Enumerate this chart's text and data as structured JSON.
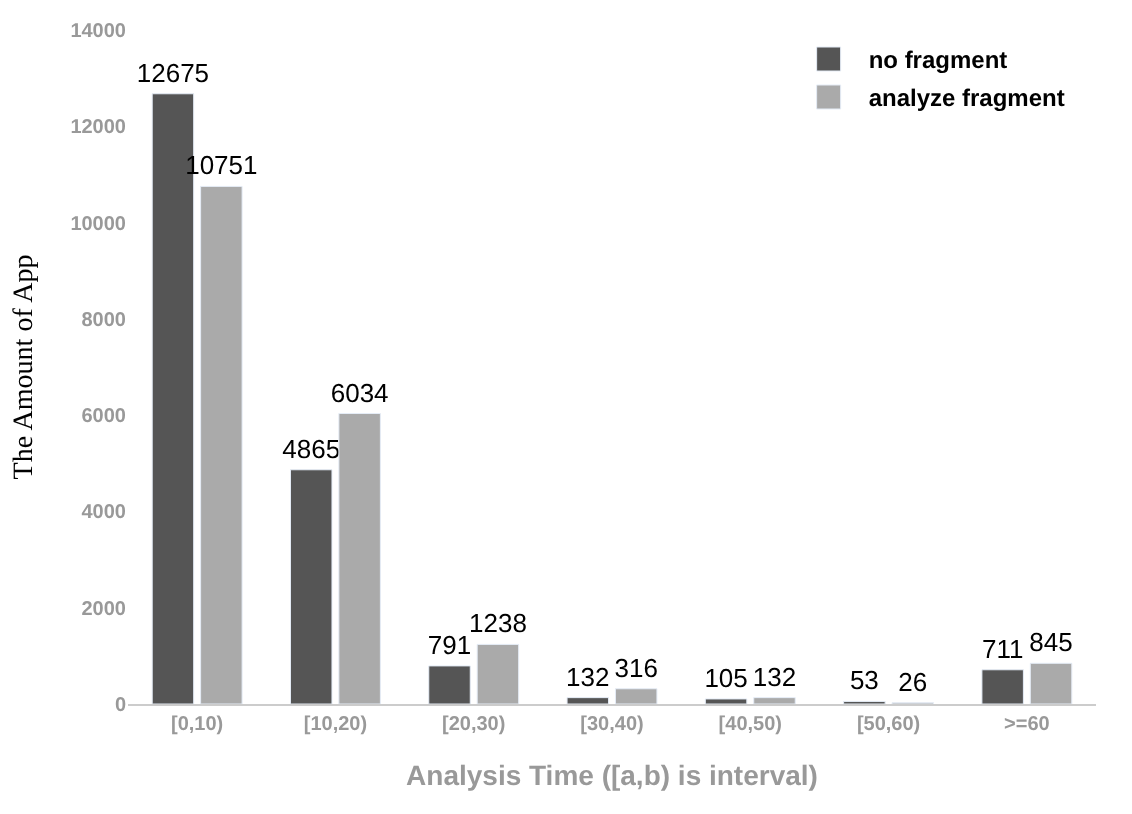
{
  "chart_data": {
    "type": "bar",
    "xlabel": "Analysis Time ([a,b) is interval)",
    "ylabel": "The Amount of App",
    "categories": [
      "[0,10)",
      "[10,20)",
      "[20,30)",
      "[30,40)",
      "[40,50)",
      "[50,60)",
      ">=60"
    ],
    "series": [
      {
        "name": "no fragment",
        "color": "#555555",
        "values": [
          12675,
          4865,
          791,
          132,
          105,
          53,
          711
        ]
      },
      {
        "name": "analyze fragment",
        "color": "#aaaaaa",
        "values": [
          10751,
          6034,
          1238,
          316,
          132,
          26,
          845
        ]
      }
    ],
    "ylim": [
      0,
      14000
    ],
    "yticks": [
      0,
      2000,
      4000,
      6000,
      8000,
      10000,
      12000,
      14000
    ],
    "data_labels": true,
    "legend": "top right"
  }
}
